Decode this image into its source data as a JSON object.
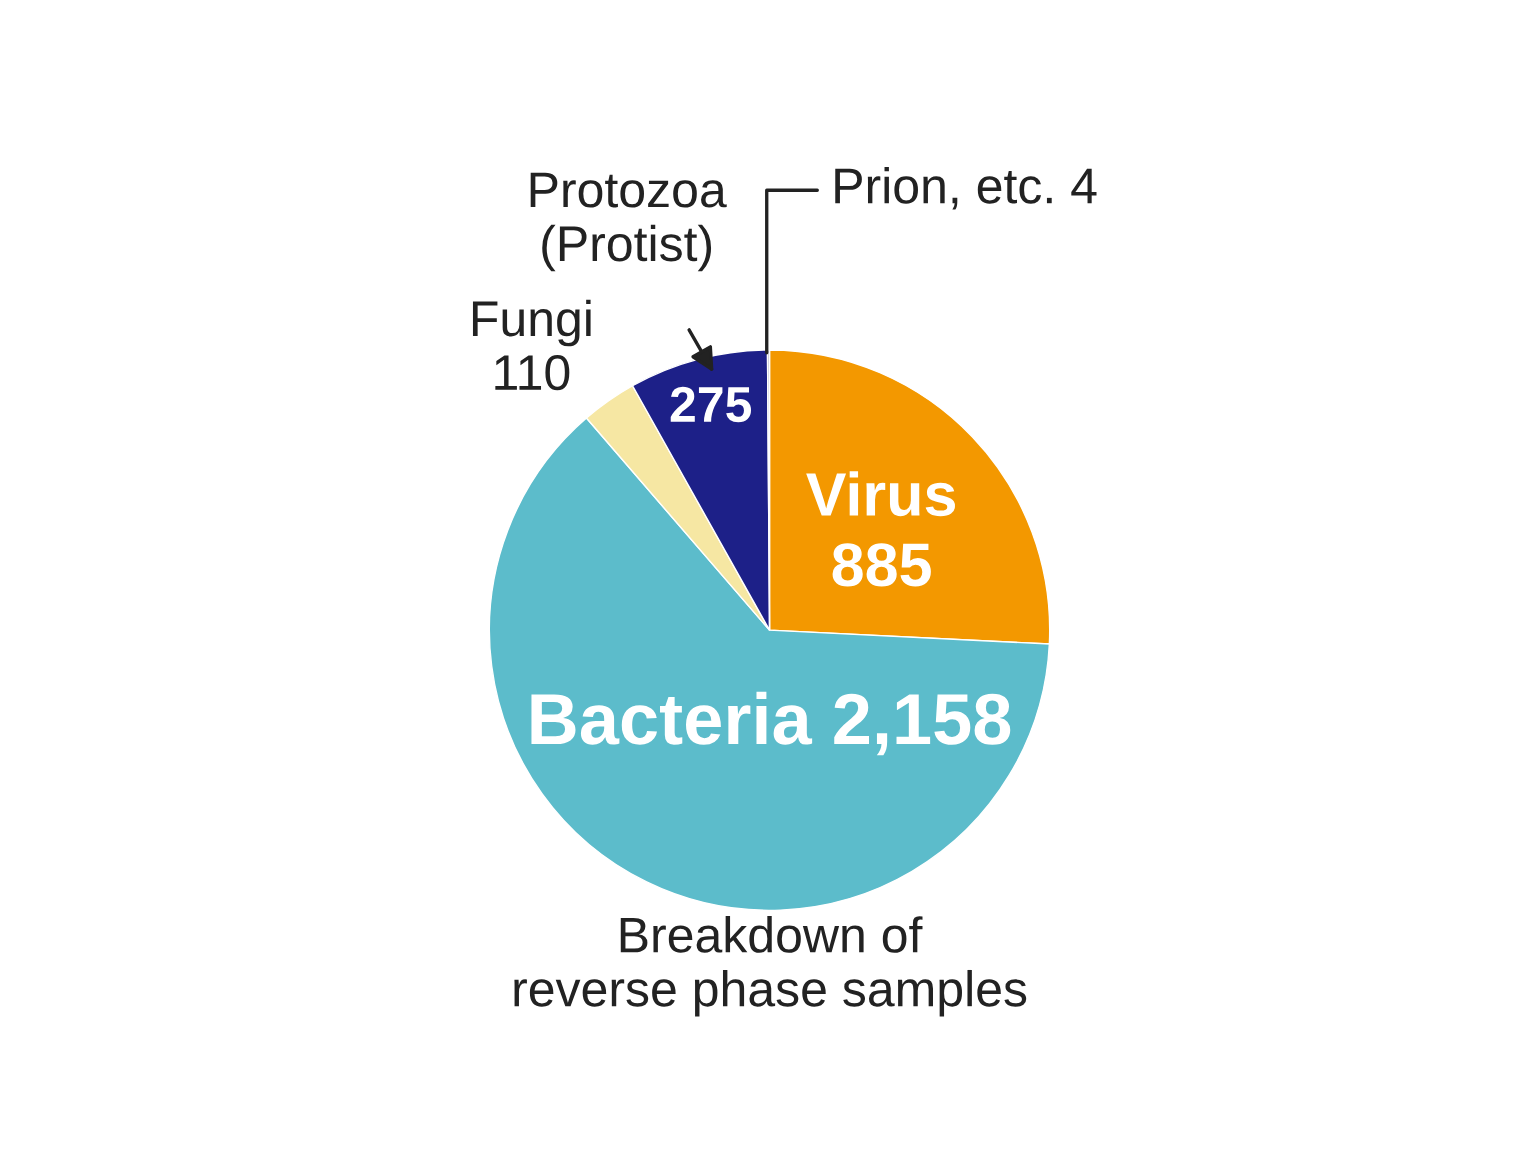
{
  "chart_data": {
    "type": "pie",
    "title": "Breakdown of\nreverse phase samples",
    "categories": [
      "Virus",
      "Bacteria",
      "Fungi",
      "Protozoa\n(Protist)",
      "Prion, etc."
    ],
    "values": [
      885,
      2158,
      110,
      275,
      4
    ],
    "value_labels": [
      "885",
      "2,158",
      "110",
      "275",
      "4"
    ],
    "colors": [
      "#f39800",
      "#5cbccb",
      "#f6e7a3",
      "#1d2088",
      "#b4b8c8"
    ],
    "legend": false
  }
}
